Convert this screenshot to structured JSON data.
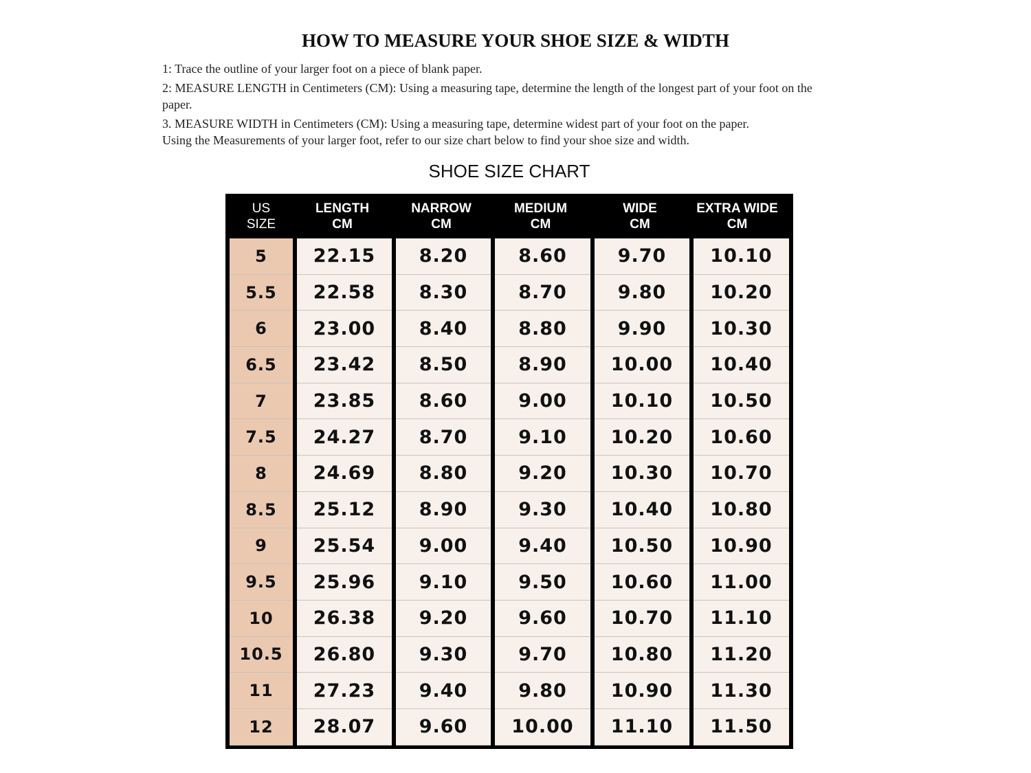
{
  "title": "HOW TO MEASURE YOUR SHOE SIZE & WIDTH",
  "instructions": [
    "1: Trace the outline of your larger foot on a piece of blank paper.",
    "2: MEASURE LENGTH in Centimeters (CM): Using a measuring tape, determine the length of the longest part of your foot on the paper.",
    "3. MEASURE WIDTH in Centimeters (CM): Using a measuring tape, determine widest part of your foot on the paper.",
    "Using the Measurements of your larger foot, refer to our size chart below to find your shoe size and width."
  ],
  "chart_title": "SHOE SIZE CHART",
  "colors": {
    "header_bg": "#000000",
    "size_column_bg": "#ebc9b1",
    "cell_bg": "#f8f1eb"
  },
  "table": {
    "headers": [
      [
        "US",
        "SIZE"
      ],
      [
        "LENGTH",
        "CM"
      ],
      [
        "NARROW",
        "CM"
      ],
      [
        "MEDIUM",
        "CM"
      ],
      [
        "WIDE",
        "CM"
      ],
      [
        "EXTRA WIDE",
        "CM"
      ]
    ],
    "rows": [
      [
        "5",
        "22.15",
        "8.20",
        "8.60",
        "9.70",
        "10.10"
      ],
      [
        "5.5",
        "22.58",
        "8.30",
        "8.70",
        "9.80",
        "10.20"
      ],
      [
        "6",
        "23.00",
        "8.40",
        "8.80",
        "9.90",
        "10.30"
      ],
      [
        "6.5",
        "23.42",
        "8.50",
        "8.90",
        "10.00",
        "10.40"
      ],
      [
        "7",
        "23.85",
        "8.60",
        "9.00",
        "10.10",
        "10.50"
      ],
      [
        "7.5",
        "24.27",
        "8.70",
        "9.10",
        "10.20",
        "10.60"
      ],
      [
        "8",
        "24.69",
        "8.80",
        "9.20",
        "10.30",
        "10.70"
      ],
      [
        "8.5",
        "25.12",
        "8.90",
        "9.30",
        "10.40",
        "10.80"
      ],
      [
        "9",
        "25.54",
        "9.00",
        "9.40",
        "10.50",
        "10.90"
      ],
      [
        "9.5",
        "25.96",
        "9.10",
        "9.50",
        "10.60",
        "11.00"
      ],
      [
        "10",
        "26.38",
        "9.20",
        "9.60",
        "10.70",
        "11.10"
      ],
      [
        "10.5",
        "26.80",
        "9.30",
        "9.70",
        "10.80",
        "11.20"
      ],
      [
        "11",
        "27.23",
        "9.40",
        "9.80",
        "10.90",
        "11.30"
      ],
      [
        "12",
        "28.07",
        "9.60",
        "10.00",
        "11.10",
        "11.50"
      ]
    ]
  }
}
